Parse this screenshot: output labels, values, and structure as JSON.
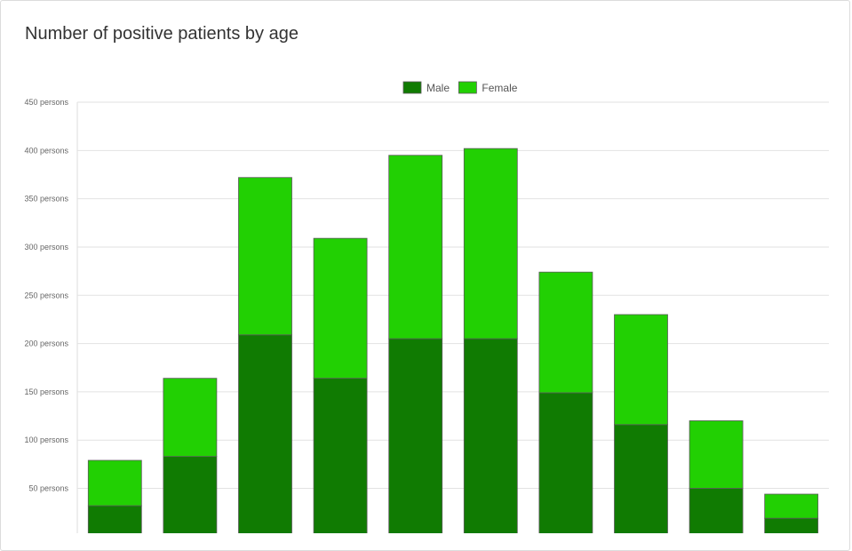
{
  "chart_data": {
    "type": "bar",
    "stacked": true,
    "title": "Number of positive patients by age",
    "xlabel": "",
    "ylabel": "",
    "categories": [
      "",
      "",
      "",
      "",
      "",
      "",
      "",
      "",
      "",
      ""
    ],
    "series": [
      {
        "name": "Male",
        "color": "#107b02",
        "values": [
          32,
          83,
          209,
          164,
          205,
          205,
          149,
          116,
          50,
          19
        ]
      },
      {
        "name": "Female",
        "color": "#22d003",
        "values": [
          47,
          81,
          163,
          145,
          190,
          197,
          125,
          114,
          70,
          25
        ]
      }
    ],
    "ylim": [
      0,
      450
    ],
    "yticks": [
      50,
      100,
      150,
      200,
      250,
      300,
      350,
      400,
      450
    ],
    "ytick_suffix": " persons",
    "grid": true,
    "legend": "top-center"
  }
}
